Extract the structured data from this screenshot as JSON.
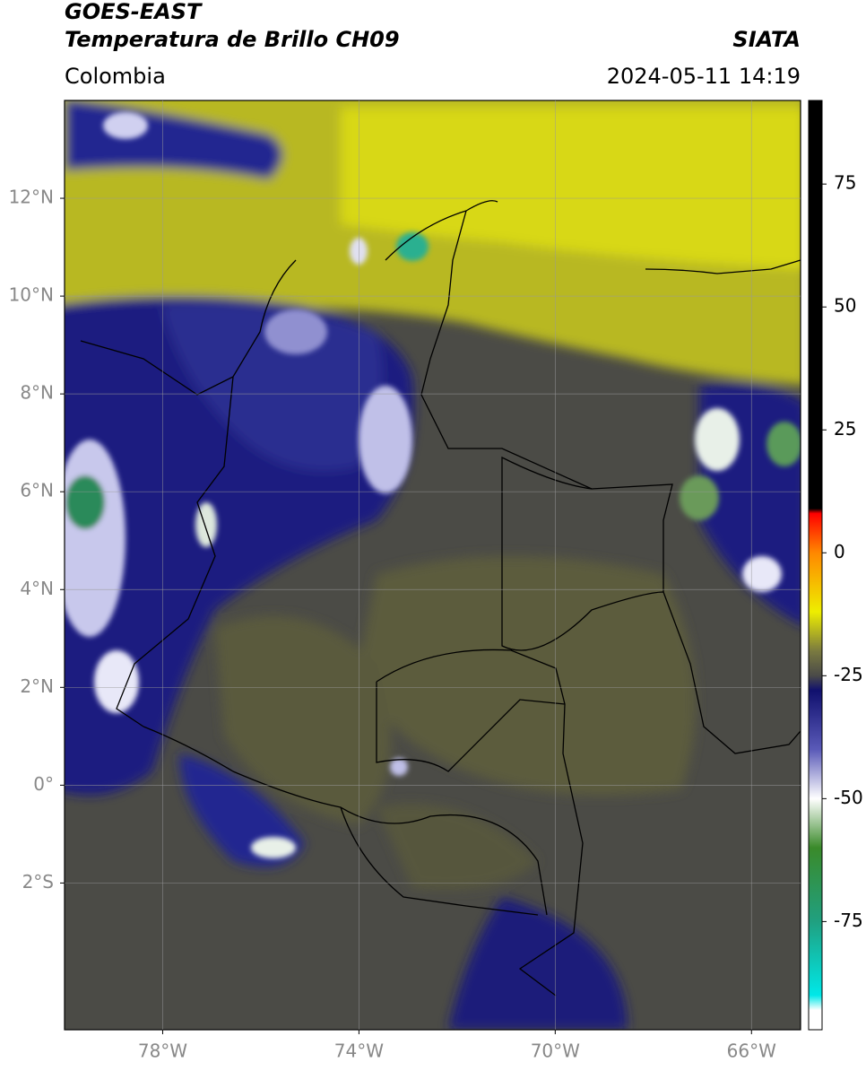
{
  "header": {
    "title_line1": "GOES-EAST",
    "title_line2": "Temperatura de Brillo CH09",
    "source": "SIATA",
    "region": "Colombia",
    "timestamp": "2024-05-11 14:19"
  },
  "map": {
    "xlim": [
      -80,
      -65
    ],
    "ylim": [
      -5,
      14
    ],
    "xticks": [
      {
        "value": -78,
        "label": "78°W"
      },
      {
        "value": -74,
        "label": "74°W"
      },
      {
        "value": -70,
        "label": "70°W"
      },
      {
        "value": -66,
        "label": "66°W"
      }
    ],
    "yticks": [
      {
        "value": 12,
        "label": "12°N"
      },
      {
        "value": 10,
        "label": "10°N"
      },
      {
        "value": 8,
        "label": "8°N"
      },
      {
        "value": 6,
        "label": "6°N"
      },
      {
        "value": 4,
        "label": "4°N"
      },
      {
        "value": 2,
        "label": "2°N"
      },
      {
        "value": 0,
        "label": "0°"
      },
      {
        "value": -2,
        "label": "2°S"
      }
    ],
    "grid": true
  },
  "colorbar": {
    "ylim": [
      -97,
      92
    ],
    "yticks": [
      75,
      50,
      25,
      0,
      -25,
      -50,
      -75
    ],
    "stops": [
      {
        "value": 92,
        "color": "#000000"
      },
      {
        "value": 9,
        "color": "#000000"
      },
      {
        "value": 8,
        "color": "#ff0000"
      },
      {
        "value": 0,
        "color": "#ff8800"
      },
      {
        "value": -12,
        "color": "#eeee00"
      },
      {
        "value": -20,
        "color": "#7a7a40"
      },
      {
        "value": -25,
        "color": "#4a4a48"
      },
      {
        "value": -28,
        "color": "#10106e"
      },
      {
        "value": -40,
        "color": "#5a5ab8"
      },
      {
        "value": -50,
        "color": "#ffffff"
      },
      {
        "value": -60,
        "color": "#3a8a2a"
      },
      {
        "value": -75,
        "color": "#20a080"
      },
      {
        "value": -90,
        "color": "#00e8e8"
      },
      {
        "value": -93,
        "color": "#ffffff"
      },
      {
        "value": -97,
        "color": "#ffffff"
      }
    ]
  }
}
